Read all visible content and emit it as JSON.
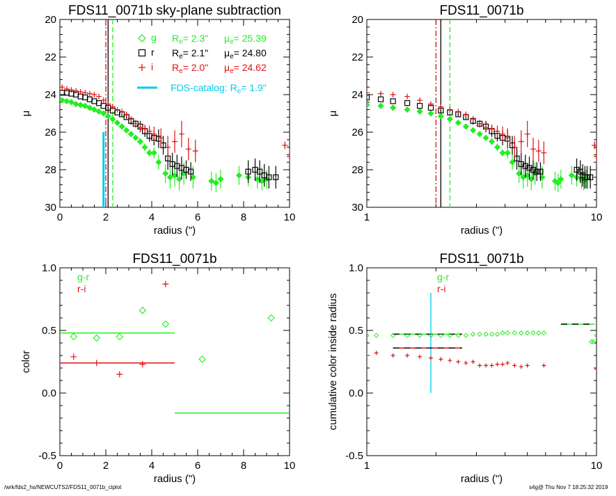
{
  "footer": {
    "path": "/wrk/fds2_hs/NEWCUTS2/FDS11_0071b_ciplot",
    "stamp": "s4g@  Thu Nov  7 18:25:32 2019"
  },
  "colors": {
    "g": "#22ee22",
    "r": "#000000",
    "i": "#e01010",
    "catalog": "#00ccee"
  },
  "chart_data": [
    {
      "id": "p1",
      "type": "scatter",
      "title": "FDS11_0071b sky-plane subtraction",
      "xlabel": "radius (\")",
      "ylabel": "μ",
      "xscale": "linear",
      "xlim": [
        0,
        10
      ],
      "ylim": [
        30,
        20
      ],
      "xticks": [
        0,
        2,
        4,
        6,
        8,
        10
      ],
      "yticks": [
        20,
        22,
        24,
        26,
        28,
        30
      ],
      "legend": [
        {
          "band": "g",
          "sym": "◇",
          "re_label": "R",
          "re_sub": "e",
          "re_val": "=  2.3\"",
          "mu_label": "μ",
          "mu_sub": "e",
          "mu_val": "= 25.39"
        },
        {
          "band": "r",
          "sym": "□",
          "re_label": "R",
          "re_sub": "e",
          "re_val": "=  2.1\"",
          "mu_label": "μ",
          "mu_sub": "e",
          "mu_val": "= 24.80"
        },
        {
          "band": "i",
          "sym": "+",
          "re_label": "R",
          "re_sub": "e",
          "re_val": "=  2.0\"",
          "mu_label": "μ",
          "mu_sub": "e",
          "mu_val": "= 24.62"
        }
      ],
      "catalog": {
        "label": "FDS-catalog: R",
        "sub": "e",
        "val": "=  1.9\"",
        "re": 1.9
      },
      "vlines": [
        {
          "band": "g",
          "x": 2.3,
          "style": "dashed"
        },
        {
          "band": "r",
          "x": 2.1,
          "style": "solid"
        },
        {
          "band": "i",
          "x": 2.0,
          "style": "dashdot"
        }
      ],
      "series": [
        {
          "band": "g",
          "x": [
            0.1,
            0.3,
            0.5,
            0.7,
            0.9,
            1.1,
            1.3,
            1.5,
            1.7,
            1.9,
            2.1,
            2.3,
            2.5,
            2.7,
            2.9,
            3.1,
            3.3,
            3.5,
            3.7,
            3.9,
            4.1,
            4.3,
            4.6,
            4.8,
            5.0,
            5.2,
            5.4,
            5.8,
            6.6,
            6.8,
            7.0,
            7.8,
            8.2,
            8.6,
            8.8,
            9.0
          ],
          "y": [
            24.3,
            24.35,
            24.4,
            24.5,
            24.55,
            24.6,
            24.7,
            24.8,
            24.9,
            25.0,
            25.15,
            25.3,
            25.5,
            25.7,
            25.9,
            26.1,
            26.3,
            26.5,
            26.8,
            27.1,
            27.1,
            27.6,
            28.2,
            28.4,
            28.3,
            28.5,
            28.2,
            28.4,
            28.6,
            28.7,
            28.5,
            28.3,
            28.4,
            28.5,
            28.6,
            28.5
          ],
          "err": [
            0,
            0,
            0,
            0,
            0,
            0,
            0,
            0,
            0,
            0,
            0,
            0,
            0,
            0.1,
            0.1,
            0.15,
            0.15,
            0.2,
            0.2,
            0.2,
            0.3,
            0.4,
            0.5,
            0.6,
            0.6,
            0.6,
            0.6,
            0.6,
            0.5,
            0.5,
            0.5,
            0.5,
            0.5,
            0.5,
            0.5,
            0.5
          ]
        },
        {
          "band": "r",
          "x": [
            0.1,
            0.3,
            0.5,
            0.7,
            0.9,
            1.1,
            1.3,
            1.5,
            1.7,
            1.9,
            2.1,
            2.3,
            2.5,
            2.7,
            2.9,
            3.1,
            3.3,
            3.5,
            3.7,
            3.9,
            4.1,
            4.3,
            4.5,
            4.7,
            4.9,
            5.1,
            5.3,
            5.5,
            5.7,
            8.2,
            8.5,
            8.7,
            8.9,
            9.1,
            9.4
          ],
          "y": [
            23.9,
            23.9,
            23.95,
            24.0,
            24.1,
            24.15,
            24.25,
            24.35,
            24.45,
            24.6,
            24.7,
            24.85,
            24.95,
            25.05,
            25.2,
            25.4,
            25.55,
            25.7,
            25.95,
            26.2,
            26.3,
            26.35,
            26.7,
            27.4,
            27.7,
            27.8,
            27.9,
            28.0,
            28.1,
            28.1,
            28.0,
            28.1,
            28.3,
            28.4,
            28.4
          ],
          "err": [
            0,
            0,
            0,
            0,
            0,
            0,
            0,
            0,
            0,
            0,
            0,
            0,
            0,
            0.1,
            0.1,
            0.2,
            0.2,
            0.3,
            0.3,
            0.3,
            0.4,
            0.5,
            0.5,
            0.6,
            0.6,
            0.6,
            0.6,
            0.5,
            0.5,
            0.6,
            0.6,
            0.6,
            0.6,
            0.6,
            0.6
          ]
        },
        {
          "band": "i",
          "x": [
            0.1,
            0.3,
            0.5,
            0.7,
            0.9,
            1.1,
            1.3,
            1.5,
            1.7,
            1.9,
            2.1,
            2.3,
            2.5,
            2.7,
            2.9,
            3.1,
            3.3,
            3.5,
            3.7,
            3.9,
            4.1,
            4.4,
            4.7,
            5.0,
            5.3,
            5.6,
            5.9,
            9.8,
            10.0
          ],
          "y": [
            23.6,
            23.7,
            23.75,
            23.8,
            23.85,
            23.9,
            23.95,
            24.0,
            24.1,
            24.3,
            24.5,
            24.65,
            24.8,
            24.9,
            25.05,
            25.3,
            25.55,
            25.75,
            25.8,
            25.95,
            26.1,
            26.3,
            26.8,
            26.5,
            26.1,
            26.9,
            27.0,
            26.7,
            27.3
          ],
          "err": [
            0,
            0,
            0,
            0,
            0,
            0,
            0,
            0,
            0,
            0,
            0,
            0,
            0,
            0,
            0.1,
            0.1,
            0.2,
            0.2,
            0.2,
            0.3,
            0.4,
            0.5,
            0.6,
            0.6,
            0.7,
            0.6,
            0.6,
            0.2,
            0.4
          ]
        }
      ]
    },
    {
      "id": "p2",
      "type": "scatter",
      "title": "FDS11_0071b",
      "xlabel": "radius (\")",
      "ylabel": "μ",
      "xscale": "log",
      "xlim": [
        1,
        10
      ],
      "ylim": [
        30,
        20
      ],
      "xticks": [
        1,
        10
      ],
      "yticks": [
        20,
        22,
        24,
        26,
        28,
        30
      ],
      "vlines": [
        {
          "band": "g",
          "x": 2.3,
          "style": "dashed"
        },
        {
          "band": "r",
          "x": 2.1,
          "style": "solid"
        },
        {
          "band": "i",
          "x": 2.0,
          "style": "dashdot"
        }
      ],
      "series": [
        {
          "band": "g",
          "x": [
            1.0,
            1.15,
            1.3,
            1.5,
            1.7,
            1.9,
            2.1,
            2.3,
            2.5,
            2.7,
            2.9,
            3.1,
            3.3,
            3.5,
            3.7,
            3.9,
            4.1,
            4.3,
            4.6,
            4.8,
            5.0,
            5.2,
            5.4,
            5.8,
            6.6,
            6.8,
            7.0,
            7.8,
            8.2,
            8.6,
            8.8,
            9.0
          ],
          "y": [
            24.55,
            24.6,
            24.7,
            24.8,
            24.9,
            25.0,
            25.15,
            25.3,
            25.5,
            25.7,
            25.9,
            26.1,
            26.3,
            26.5,
            26.8,
            27.1,
            27.1,
            27.6,
            28.2,
            28.4,
            28.3,
            28.5,
            28.2,
            28.4,
            28.6,
            28.7,
            28.5,
            28.3,
            28.4,
            28.5,
            28.6,
            28.5
          ],
          "err": [
            0,
            0,
            0,
            0,
            0,
            0,
            0,
            0,
            0,
            0.1,
            0.1,
            0.15,
            0.15,
            0.2,
            0.2,
            0.2,
            0.3,
            0.4,
            0.5,
            0.6,
            0.6,
            0.6,
            0.6,
            0.6,
            0.5,
            0.5,
            0.5,
            0.5,
            0.5,
            0.5,
            0.5,
            0.5
          ]
        },
        {
          "band": "r",
          "x": [
            1.0,
            1.15,
            1.3,
            1.5,
            1.7,
            1.9,
            2.1,
            2.3,
            2.5,
            2.7,
            2.9,
            3.1,
            3.3,
            3.5,
            3.7,
            3.9,
            4.1,
            4.3,
            4.5,
            4.7,
            4.9,
            5.1,
            5.3,
            5.5,
            5.7,
            8.2,
            8.5,
            8.7,
            8.9,
            9.1,
            9.4
          ],
          "y": [
            24.15,
            24.25,
            24.35,
            24.45,
            24.6,
            24.7,
            24.85,
            24.95,
            25.05,
            25.2,
            25.4,
            25.55,
            25.7,
            25.95,
            26.2,
            26.3,
            26.35,
            26.7,
            27.4,
            27.7,
            27.8,
            27.9,
            28.0,
            28.1,
            28.1,
            28.0,
            28.1,
            28.3,
            28.4,
            28.4,
            28.4
          ],
          "err": [
            0,
            0,
            0,
            0,
            0,
            0,
            0,
            0,
            0.1,
            0.1,
            0.2,
            0.2,
            0.3,
            0.3,
            0.3,
            0.4,
            0.5,
            0.5,
            0.6,
            0.6,
            0.6,
            0.6,
            0.5,
            0.5,
            0.5,
            0.6,
            0.6,
            0.6,
            0.6,
            0.6,
            0.6
          ]
        },
        {
          "band": "i",
          "x": [
            1.0,
            1.15,
            1.3,
            1.5,
            1.7,
            1.9,
            2.1,
            2.3,
            2.5,
            2.7,
            2.9,
            3.1,
            3.3,
            3.5,
            3.7,
            3.9,
            4.1,
            4.4,
            4.7,
            5.0,
            5.3,
            5.6,
            5.9,
            9.8,
            10.0
          ],
          "y": [
            23.9,
            23.95,
            24.0,
            24.1,
            24.3,
            24.5,
            24.65,
            24.8,
            24.9,
            25.05,
            25.3,
            25.55,
            25.75,
            25.8,
            25.95,
            26.1,
            26.3,
            26.8,
            26.5,
            26.1,
            26.9,
            27.0,
            27.1,
            26.7,
            27.3
          ],
          "err": [
            0,
            0,
            0,
            0,
            0,
            0,
            0,
            0,
            0,
            0.1,
            0.1,
            0.2,
            0.2,
            0.2,
            0.3,
            0.4,
            0.5,
            0.6,
            0.6,
            0.7,
            0.6,
            0.6,
            0.6,
            0.2,
            0.4
          ]
        }
      ]
    },
    {
      "id": "p3",
      "type": "scatter",
      "title": "FDS11_0071b",
      "xlabel": "radius (\")",
      "ylabel": "color",
      "xscale": "linear",
      "xlim": [
        0,
        10
      ],
      "ylim": [
        -0.5,
        1.0
      ],
      "xticks": [
        0,
        2,
        4,
        6,
        8,
        10
      ],
      "yticks": [
        -0.5,
        0.0,
        0.5,
        1.0
      ],
      "legend": [
        {
          "band": "g",
          "text": "g-r"
        },
        {
          "band": "i",
          "text": "r-i"
        }
      ],
      "series": [
        {
          "band": "g",
          "name": "g-r",
          "x": [
            0.6,
            1.6,
            2.6,
            3.6,
            4.6,
            6.2,
            9.2
          ],
          "y": [
            0.45,
            0.44,
            0.45,
            0.66,
            0.55,
            0.27,
            0.6
          ]
        },
        {
          "band": "i",
          "name": "r-i",
          "x": [
            0.6,
            1.6,
            2.6,
            3.6,
            4.6
          ],
          "y": [
            0.29,
            0.24,
            0.15,
            0.23,
            0.87
          ]
        }
      ],
      "hlines": [
        {
          "band": "g",
          "x0": 0,
          "x1": 5,
          "y": 0.48
        },
        {
          "band": "i",
          "x0": 0,
          "x1": 5,
          "y": 0.24
        },
        {
          "band": "g",
          "x0": 5,
          "x1": 10,
          "y": -0.16
        }
      ]
    },
    {
      "id": "p4",
      "type": "scatter",
      "title": "FDS11_0071b",
      "xlabel": "radius (\")",
      "ylabel": "cumulative color inside radius",
      "xscale": "log",
      "xlim": [
        1,
        10
      ],
      "ylim": [
        -0.5,
        1.0
      ],
      "xticks": [
        1,
        10
      ],
      "yticks": [
        -0.5,
        0.0,
        0.5,
        1.0
      ],
      "legend": [
        {
          "band": "g",
          "text": "g-r"
        },
        {
          "band": "i",
          "text": "r-i"
        }
      ],
      "vline": {
        "band": "catalog",
        "x": 1.9,
        "y0": 0.0,
        "y1": 0.8
      },
      "series": [
        {
          "band": "g",
          "name": "g-r",
          "x": [
            1.0,
            1.1,
            1.3,
            1.5,
            1.7,
            1.9,
            2.1,
            2.3,
            2.5,
            2.7,
            2.9,
            3.1,
            3.3,
            3.5,
            3.7,
            3.9,
            4.1,
            4.4,
            4.7,
            5.0,
            5.3,
            5.6,
            5.9,
            9.5,
            9.7,
            10.0
          ],
          "y": [
            0.46,
            0.46,
            0.46,
            0.46,
            0.46,
            0.46,
            0.46,
            0.46,
            0.46,
            0.46,
            0.47,
            0.47,
            0.47,
            0.47,
            0.47,
            0.48,
            0.48,
            0.48,
            0.48,
            0.48,
            0.48,
            0.48,
            0.48,
            0.41,
            0.41,
            0.46
          ]
        },
        {
          "band": "i",
          "name": "r-i",
          "x": [
            1.0,
            1.1,
            1.3,
            1.5,
            1.7,
            1.9,
            2.1,
            2.3,
            2.5,
            2.7,
            2.9,
            3.1,
            3.3,
            3.5,
            3.7,
            3.9,
            4.1,
            4.4,
            4.7,
            5.0,
            5.9,
            10.0
          ],
          "y": [
            0.3,
            0.32,
            0.3,
            0.3,
            0.29,
            0.28,
            0.27,
            0.26,
            0.25,
            0.24,
            0.25,
            0.22,
            0.22,
            0.22,
            0.23,
            0.23,
            0.24,
            0.22,
            0.21,
            0.22,
            0.22,
            0.19
          ]
        }
      ],
      "hlines": [
        {
          "band": "g",
          "x0": 1.3,
          "x1": 2.6,
          "y": 0.47,
          "dashed_black": true
        },
        {
          "band": "i",
          "x0": 1.3,
          "x1": 2.6,
          "y": 0.36,
          "dashed_black": true
        },
        {
          "band": "g",
          "x0": 7.0,
          "x1": 9.8,
          "y": 0.55,
          "dashed_black": true
        }
      ]
    }
  ]
}
